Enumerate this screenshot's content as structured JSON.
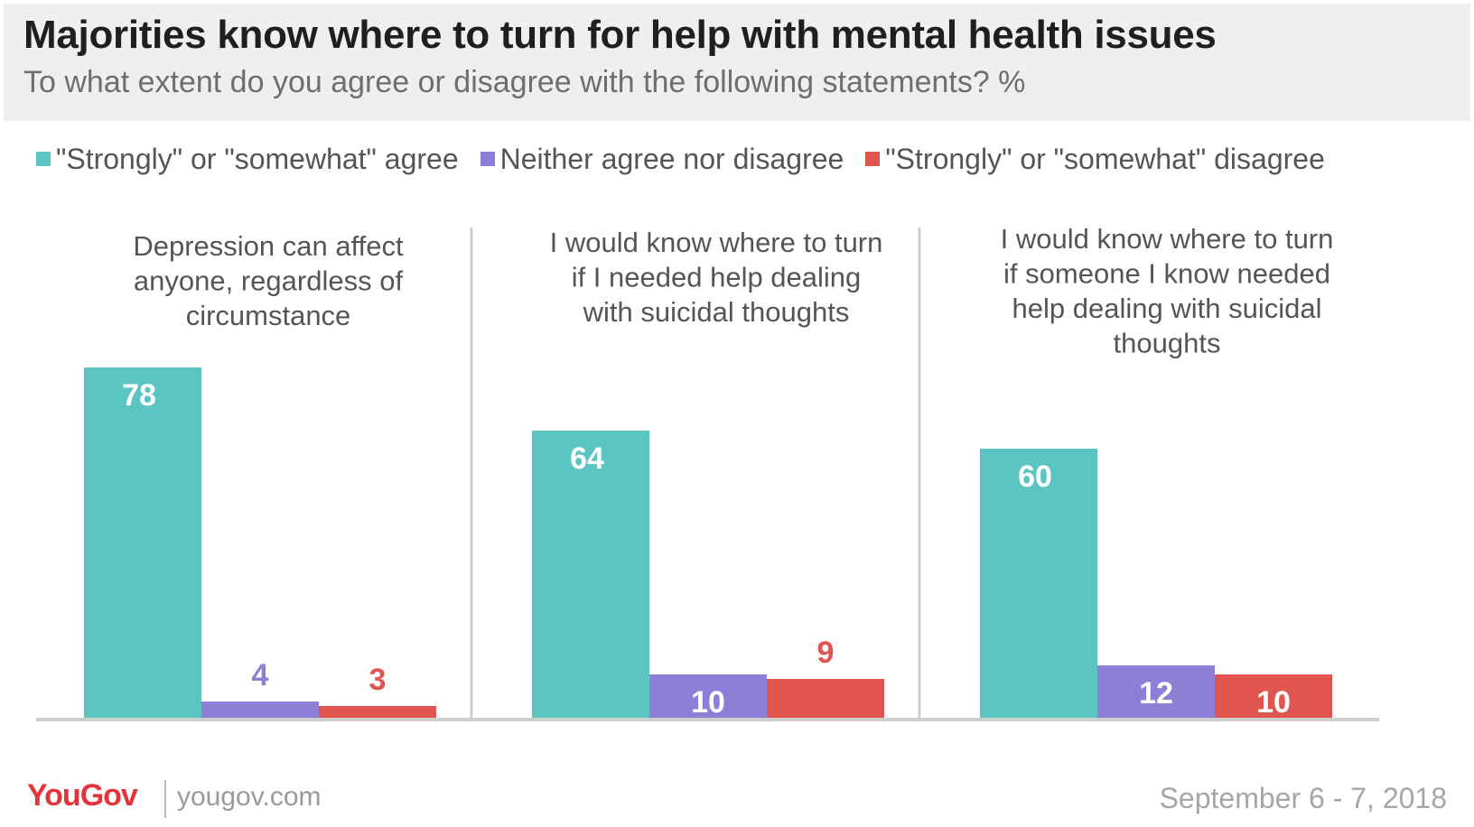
{
  "chart_data": {
    "type": "bar",
    "title": "Majorities know where to turn for help with mental health issues",
    "subtitle": "To what extent do you agree or disagree with the following statements? %",
    "categories": [
      "Depression can affect anyone, regardless of circumstance",
      "I would know where to turn if I needed help dealing with suicidal thoughts",
      "I would know where to turn if someone I know needed help dealing with suicidal thoughts"
    ],
    "category_lines": [
      [
        "Depression can affect",
        "anyone, regardless of",
        "circumstance"
      ],
      [
        "I would know where to turn",
        "if I needed help dealing",
        "with suicidal thoughts"
      ],
      [
        "I would know where to turn",
        "if someone I know needed",
        "help dealing with suicidal",
        "thoughts"
      ]
    ],
    "series": [
      {
        "name": "\"Strongly\" or \"somewhat\" agree",
        "color": "#5bc5c3",
        "label_color": "#ffffff",
        "values": [
          78,
          64,
          60
        ]
      },
      {
        "name": "Neither agree nor disagree",
        "color": "#8c7fd6",
        "label_color": "#8c7fd6",
        "values": [
          4,
          10,
          12
        ]
      },
      {
        "name": "\"Strongly\" or \"somewhat\" disagree",
        "color": "#e05550",
        "label_color": "#e05550",
        "values": [
          3,
          9,
          10
        ]
      }
    ],
    "ylim": [
      0,
      100
    ],
    "grid": false,
    "legend": "top"
  },
  "footer": {
    "logo_text": "YouGov",
    "url": "yougov.com",
    "date": "September 6 - 7, 2018"
  }
}
